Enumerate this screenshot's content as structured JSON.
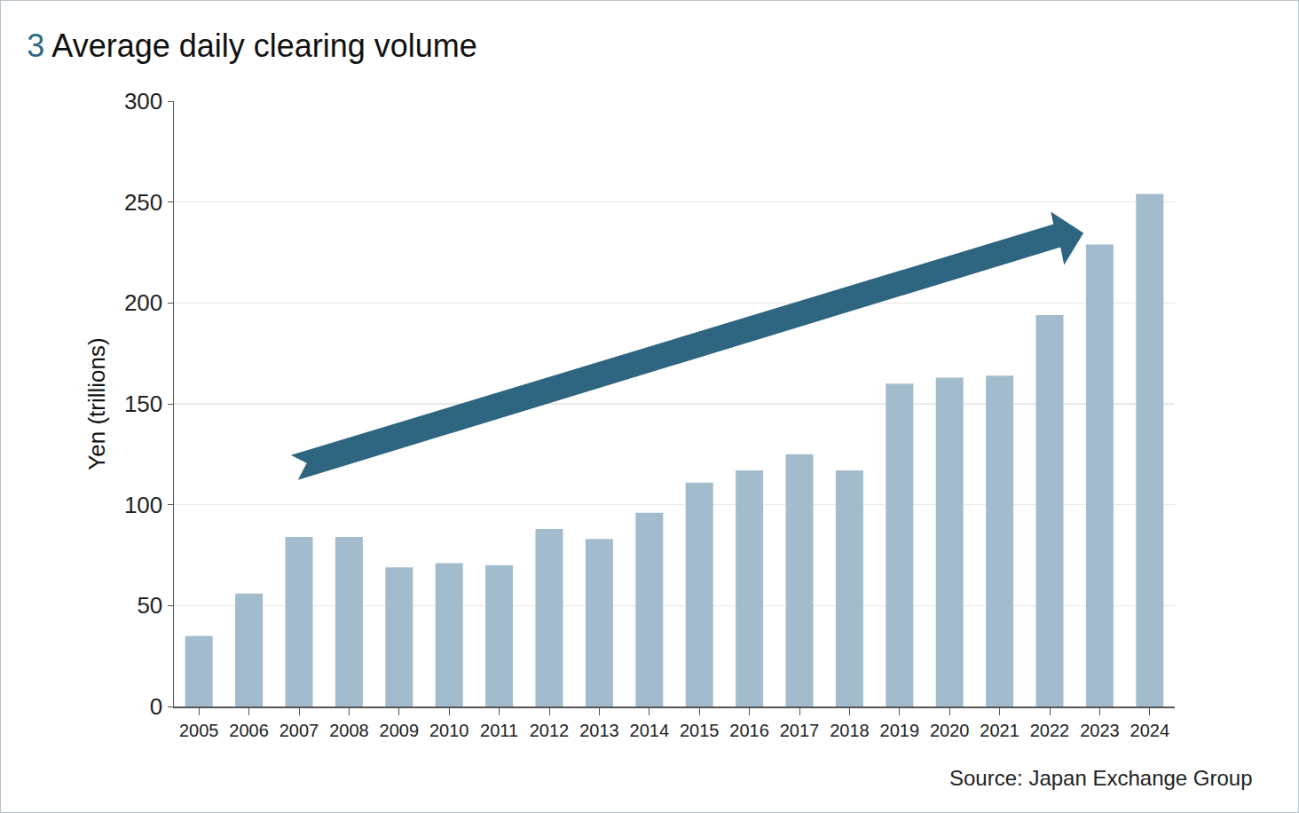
{
  "chart_data": {
    "type": "bar",
    "title": "3 Average daily clearing volume",
    "ylabel": "Yen (trillions)",
    "categories": [
      "2005",
      "2006",
      "2007",
      "2008",
      "2009",
      "2010",
      "2011",
      "2012",
      "2013",
      "2014",
      "2015",
      "2016",
      "2017",
      "2018",
      "2019",
      "2020",
      "2021",
      "2022",
      "2023",
      "2024"
    ],
    "values": [
      35,
      56,
      84,
      84,
      69,
      71,
      70,
      88,
      83,
      96,
      111,
      117,
      125,
      117,
      160,
      163,
      164,
      194,
      229,
      254
    ],
    "color": "#a3bccd",
    "ylim": [
      0,
      300
    ],
    "yticks": [
      0,
      50,
      100,
      150,
      200,
      250,
      300
    ],
    "grid": true,
    "annotations": [
      "Source: Japan Exchange Group"
    ]
  }
}
